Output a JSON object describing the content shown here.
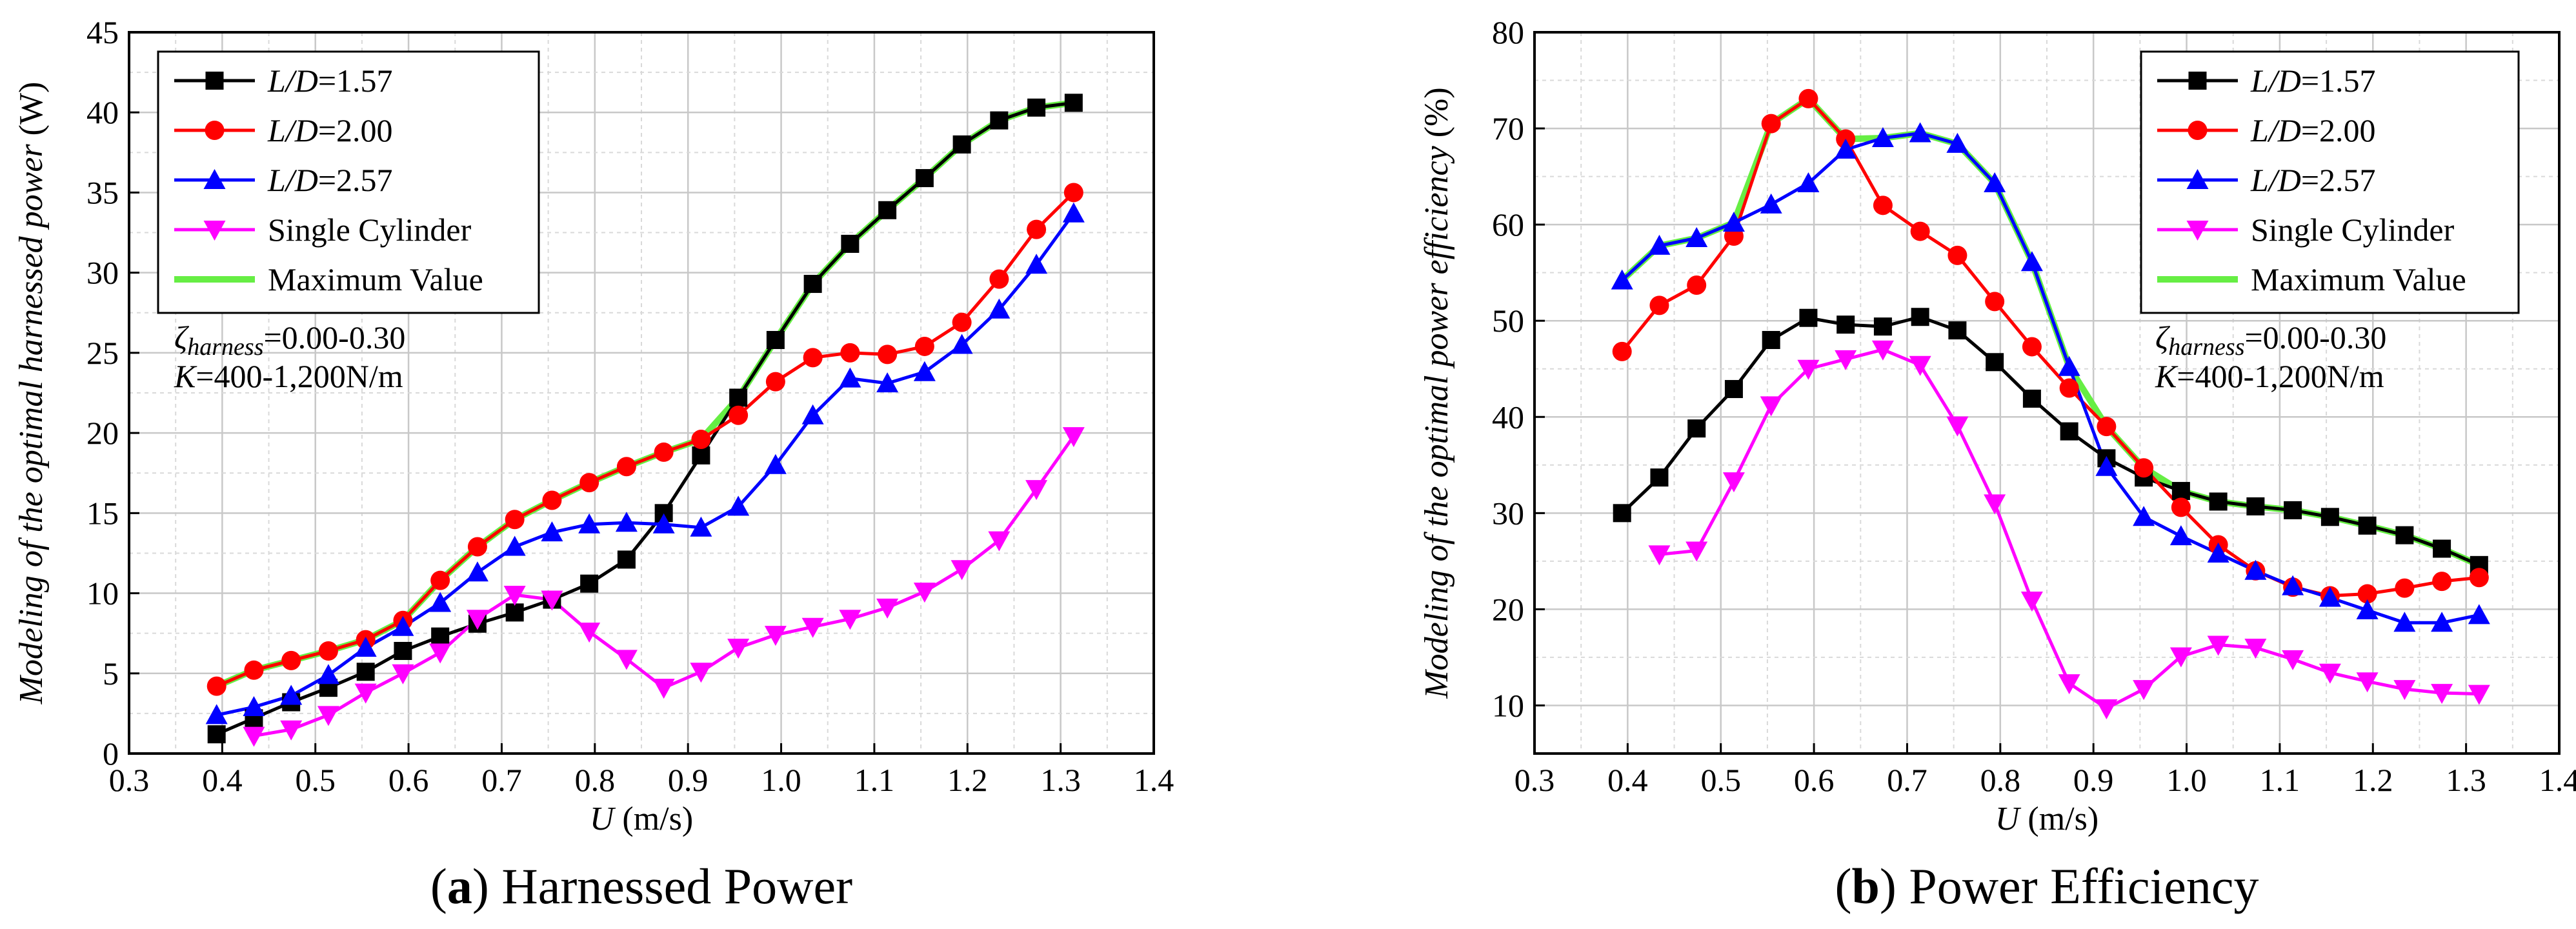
{
  "chart_data": [
    {
      "type": "line",
      "panel_label": "a",
      "caption_title": "Harnessed Power",
      "title": "",
      "xlabel_var": "U",
      "xlabel_unit": " (m/s)",
      "ylabel_prefix": "Modeling of the optimal harnessed power",
      "ylabel_unit": " (W)",
      "xlim": [
        0.3,
        1.4
      ],
      "ylim": [
        0,
        45
      ],
      "xticks": [
        0.3,
        0.4,
        0.5,
        0.6,
        0.7,
        0.8,
        0.9,
        1.0,
        1.1,
        1.2,
        1.3,
        1.4
      ],
      "yticks": [
        0,
        5,
        10,
        15,
        20,
        25,
        30,
        35,
        40,
        45
      ],
      "grid": true,
      "legend_position": "top-left",
      "annotation_zeta_symbol": "ζ",
      "annotation_zeta_sub": "harness",
      "annotation_zeta_value": "=0.00-0.30",
      "annotation_k_symbol": "K",
      "annotation_k_value": "=400-1,200N/m",
      "series": [
        {
          "name": "L/D=1.57",
          "italic_part": "L/D",
          "value_part": "=1.57",
          "color": "#000000",
          "marker": "square",
          "x": [
            0.394,
            0.434,
            0.474,
            0.514,
            0.554,
            0.594,
            0.634,
            0.674,
            0.714,
            0.754,
            0.794,
            0.834,
            0.874,
            0.914,
            0.954,
            0.994,
            1.034,
            1.074,
            1.114,
            1.154,
            1.194,
            1.234,
            1.274,
            1.314
          ],
          "y": [
            1.2,
            2.2,
            3.2,
            4.1,
            5.1,
            6.4,
            7.3,
            8.1,
            8.8,
            9.6,
            10.6,
            12.1,
            15.0,
            18.6,
            22.2,
            25.8,
            29.3,
            31.8,
            33.9,
            35.9,
            38.0,
            39.5,
            40.3,
            40.6
          ]
        },
        {
          "name": "L/D=2.00",
          "italic_part": "L/D",
          "value_part": "=2.00",
          "color": "#ff0000",
          "marker": "circle",
          "x": [
            0.394,
            0.434,
            0.474,
            0.514,
            0.554,
            0.594,
            0.634,
            0.674,
            0.714,
            0.754,
            0.794,
            0.834,
            0.874,
            0.914,
            0.954,
            0.994,
            1.034,
            1.074,
            1.114,
            1.154,
            1.194,
            1.234,
            1.274,
            1.314
          ],
          "y": [
            4.2,
            5.2,
            5.8,
            6.4,
            7.1,
            8.3,
            10.8,
            12.9,
            14.6,
            15.8,
            16.9,
            17.9,
            18.8,
            19.6,
            21.1,
            23.2,
            24.7,
            25.0,
            24.9,
            25.4,
            26.9,
            29.6,
            32.7,
            35.0
          ]
        },
        {
          "name": "L/D=2.57",
          "italic_part": "L/D",
          "value_part": "=2.57",
          "color": "#0000ff",
          "marker": "triangle-up",
          "x": [
            0.394,
            0.434,
            0.474,
            0.514,
            0.554,
            0.594,
            0.634,
            0.674,
            0.714,
            0.754,
            0.794,
            0.834,
            0.874,
            0.914,
            0.954,
            0.994,
            1.034,
            1.074,
            1.114,
            1.154,
            1.194,
            1.234,
            1.274,
            1.314
          ],
          "y": [
            2.4,
            2.9,
            3.6,
            4.9,
            6.6,
            7.9,
            9.4,
            11.3,
            12.9,
            13.8,
            14.3,
            14.4,
            14.3,
            14.1,
            15.4,
            18.0,
            21.1,
            23.4,
            23.1,
            23.8,
            25.5,
            27.7,
            30.5,
            33.7
          ]
        },
        {
          "name": "Single Cylinder",
          "italic_part": "",
          "value_part": "Single Cylinder",
          "color": "#ff00ff",
          "marker": "triangle-down",
          "x": [
            0.434,
            0.474,
            0.514,
            0.554,
            0.594,
            0.634,
            0.674,
            0.714,
            0.754,
            0.794,
            0.834,
            0.874,
            0.914,
            0.954,
            0.994,
            1.034,
            1.074,
            1.114,
            1.154,
            1.194,
            1.234,
            1.274,
            1.314
          ],
          "y": [
            1.1,
            1.5,
            2.4,
            3.8,
            5.0,
            6.3,
            8.4,
            9.9,
            9.6,
            7.6,
            5.9,
            4.1,
            5.1,
            6.6,
            7.4,
            7.9,
            8.4,
            9.1,
            10.1,
            11.5,
            13.3,
            16.5,
            19.8
          ]
        },
        {
          "name": "Maximum Value",
          "italic_part": "",
          "value_part": "Maximum Value",
          "color": "#66ee44",
          "marker": "none",
          "x": [
            0.394,
            0.434,
            0.474,
            0.514,
            0.554,
            0.594,
            0.634,
            0.674,
            0.714,
            0.754,
            0.794,
            0.834,
            0.874,
            0.914,
            0.954,
            0.994,
            1.034,
            1.074,
            1.114,
            1.154,
            1.194,
            1.234,
            1.274,
            1.314
          ],
          "y": [
            4.2,
            5.2,
            5.8,
            6.4,
            7.1,
            8.3,
            10.8,
            12.9,
            14.6,
            15.8,
            16.9,
            17.9,
            18.8,
            19.6,
            22.2,
            25.8,
            29.3,
            31.8,
            33.9,
            35.9,
            38.0,
            39.5,
            40.3,
            40.6
          ]
        }
      ]
    },
    {
      "type": "line",
      "panel_label": "b",
      "caption_title": "Power Efficiency",
      "title": "",
      "xlabel_var": "U",
      "xlabel_unit": " (m/s)",
      "ylabel_prefix": "Modeling of the optimal power efficiency",
      "ylabel_unit": " (%)",
      "xlim": [
        0.3,
        1.4
      ],
      "ylim": [
        5,
        80
      ],
      "xticks": [
        0.3,
        0.4,
        0.5,
        0.6,
        0.7,
        0.8,
        0.9,
        1.0,
        1.1,
        1.2,
        1.3,
        1.4
      ],
      "yticks": [
        10,
        20,
        30,
        40,
        50,
        60,
        70,
        80
      ],
      "grid": true,
      "legend_position": "top-right",
      "annotation_zeta_symbol": "ζ",
      "annotation_zeta_sub": "harness",
      "annotation_zeta_value": "=0.00-0.30",
      "annotation_k_symbol": "K",
      "annotation_k_value": "=400-1,200N/m",
      "series": [
        {
          "name": "L/D=1.57",
          "italic_part": "L/D",
          "value_part": "=1.57",
          "color": "#000000",
          "marker": "square",
          "x": [
            0.394,
            0.434,
            0.474,
            0.514,
            0.554,
            0.594,
            0.634,
            0.674,
            0.714,
            0.754,
            0.794,
            0.834,
            0.874,
            0.914,
            0.954,
            0.994,
            1.034,
            1.074,
            1.114,
            1.154,
            1.194,
            1.234,
            1.274,
            1.314
          ],
          "y": [
            30.0,
            33.7,
            38.8,
            42.9,
            48.0,
            50.3,
            49.6,
            49.4,
            50.4,
            49.0,
            45.7,
            41.9,
            38.5,
            35.7,
            33.7,
            32.3,
            31.2,
            30.7,
            30.3,
            29.6,
            28.7,
            27.7,
            26.3,
            24.6
          ]
        },
        {
          "name": "L/D=2.00",
          "italic_part": "L/D",
          "value_part": "=2.00",
          "color": "#ff0000",
          "marker": "circle",
          "x": [
            0.394,
            0.434,
            0.474,
            0.514,
            0.554,
            0.594,
            0.634,
            0.674,
            0.714,
            0.754,
            0.794,
            0.834,
            0.874,
            0.914,
            0.954,
            0.994,
            1.034,
            1.074,
            1.114,
            1.154,
            1.194,
            1.234,
            1.274,
            1.314
          ],
          "y": [
            46.8,
            51.6,
            53.7,
            58.8,
            70.5,
            73.1,
            68.9,
            62.0,
            59.3,
            56.8,
            52.0,
            47.3,
            43.0,
            39.0,
            34.7,
            30.6,
            26.7,
            24.0,
            22.3,
            21.4,
            21.6,
            22.2,
            22.9,
            23.3
          ]
        },
        {
          "name": "L/D=2.57",
          "italic_part": "L/D",
          "value_part": "=2.57",
          "color": "#0000ff",
          "marker": "triangle-up",
          "x": [
            0.394,
            0.434,
            0.474,
            0.514,
            0.554,
            0.594,
            0.634,
            0.674,
            0.714,
            0.754,
            0.794,
            0.834,
            0.874,
            0.914,
            0.954,
            0.994,
            1.034,
            1.074,
            1.114,
            1.154,
            1.194,
            1.234,
            1.274,
            1.314
          ],
          "y": [
            54.2,
            57.8,
            58.6,
            60.2,
            62.1,
            64.3,
            67.8,
            69.0,
            69.5,
            68.4,
            64.3,
            56.1,
            45.2,
            34.8,
            29.6,
            27.6,
            25.8,
            24.0,
            22.4,
            21.2,
            19.9,
            18.6,
            18.6,
            19.4
          ]
        },
        {
          "name": "Single Cylinder",
          "italic_part": "",
          "value_part": "Single Cylinder",
          "color": "#ff00ff",
          "marker": "triangle-down",
          "x": [
            0.434,
            0.474,
            0.514,
            0.554,
            0.594,
            0.634,
            0.674,
            0.714,
            0.754,
            0.794,
            0.834,
            0.874,
            0.914,
            0.954,
            0.994,
            1.034,
            1.074,
            1.114,
            1.154,
            1.194,
            1.234,
            1.274,
            1.314
          ],
          "y": [
            25.7,
            26.1,
            33.3,
            41.2,
            45.0,
            46.0,
            47.0,
            45.4,
            39.1,
            31.0,
            20.9,
            12.3,
            9.7,
            11.7,
            15.1,
            16.3,
            16.0,
            14.8,
            13.4,
            12.5,
            11.7,
            11.3,
            11.2
          ]
        },
        {
          "name": "Maximum Value",
          "italic_part": "",
          "value_part": "Maximum Value",
          "color": "#66ee44",
          "marker": "none",
          "x": [
            0.394,
            0.434,
            0.474,
            0.514,
            0.554,
            0.594,
            0.634,
            0.674,
            0.714,
            0.754,
            0.794,
            0.834,
            0.874,
            0.914,
            0.954,
            0.994,
            1.034,
            1.074,
            1.114,
            1.154,
            1.194,
            1.234,
            1.274,
            1.314
          ],
          "y": [
            54.2,
            57.8,
            58.6,
            60.2,
            70.5,
            73.1,
            68.9,
            69.0,
            69.5,
            68.4,
            64.3,
            56.1,
            45.2,
            39.0,
            34.7,
            32.3,
            31.2,
            30.7,
            30.3,
            29.6,
            28.7,
            27.7,
            26.3,
            24.6
          ]
        }
      ]
    }
  ]
}
